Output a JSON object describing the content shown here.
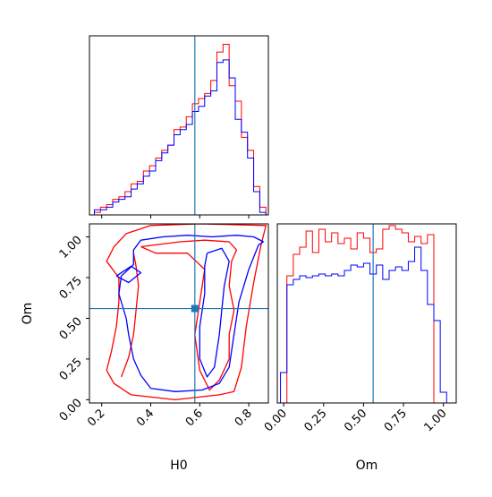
{
  "colors": {
    "red": "#ff0000",
    "blue": "#0000ff",
    "truth": "#1f77b4"
  },
  "chart_data": [
    {
      "panel": "H0 histogram",
      "type": "histogram",
      "xlim": [
        0.15,
        0.88
      ],
      "bin_edges": [
        0.17,
        0.195,
        0.22,
        0.245,
        0.27,
        0.295,
        0.32,
        0.345,
        0.37,
        0.395,
        0.42,
        0.445,
        0.47,
        0.495,
        0.52,
        0.545,
        0.57,
        0.595,
        0.62,
        0.645,
        0.67,
        0.695,
        0.72,
        0.745,
        0.77,
        0.795,
        0.82,
        0.845,
        0.87
      ],
      "series": [
        {
          "color": "red",
          "values": [
            1,
            3,
            4,
            6,
            7,
            9,
            12,
            13,
            17,
            19,
            22,
            25,
            27,
            33,
            34,
            38,
            43,
            45,
            47,
            52,
            63,
            66,
            50,
            44,
            30,
            25,
            11,
            3
          ]
        },
        {
          "color": "blue",
          "values": [
            2,
            2,
            3,
            5,
            6,
            7,
            10,
            12,
            15,
            17,
            21,
            24,
            27,
            31,
            33,
            35,
            40,
            42,
            46,
            48,
            59,
            60,
            53,
            37,
            32,
            22,
            9,
            1
          ]
        }
      ],
      "truth": 0.58,
      "xticks": [
        0.2,
        0.4,
        0.6,
        0.8
      ],
      "show_xticklabels": false,
      "show_yticks": false
    },
    {
      "panel": "Om vs H0 contours",
      "type": "contour",
      "xlabel": "H0",
      "ylabel": "Om",
      "xlim": [
        0.15,
        0.88
      ],
      "ylim": [
        -0.02,
        1.08
      ],
      "xticks": [
        "0.2",
        "0.4",
        "0.6",
        "0.8"
      ],
      "yticks": [
        "0.00",
        "0.25",
        "0.50",
        "0.75",
        "1.00"
      ],
      "truth": {
        "H0": 0.58,
        "Om": 0.56
      },
      "contours": [
        {
          "color": "red",
          "points": [
            [
              0.32,
              0.03
            ],
            [
              0.5,
              0.0
            ],
            [
              0.68,
              0.03
            ],
            [
              0.74,
              0.05
            ],
            [
              0.77,
              0.2
            ],
            [
              0.79,
              0.45
            ],
            [
              0.82,
              0.72
            ],
            [
              0.85,
              0.95
            ],
            [
              0.87,
              1.07
            ],
            [
              0.6,
              1.08
            ],
            [
              0.4,
              1.07
            ],
            [
              0.3,
              1.02
            ],
            [
              0.25,
              0.94
            ],
            [
              0.22,
              0.85
            ],
            [
              0.27,
              0.75
            ],
            [
              0.27,
              0.6
            ],
            [
              0.26,
              0.45
            ],
            [
              0.24,
              0.3
            ],
            [
              0.22,
              0.18
            ],
            [
              0.25,
              0.1
            ],
            [
              0.32,
              0.03
            ]
          ]
        },
        {
          "color": "red",
          "points": [
            [
              0.36,
              0.94
            ],
            [
              0.52,
              0.97
            ],
            [
              0.62,
              0.98
            ],
            [
              0.72,
              0.97
            ],
            [
              0.75,
              0.92
            ],
            [
              0.73,
              0.85
            ],
            [
              0.72,
              0.7
            ],
            [
              0.74,
              0.55
            ],
            [
              0.72,
              0.4
            ],
            [
              0.72,
              0.25
            ],
            [
              0.68,
              0.12
            ],
            [
              0.64,
              0.06
            ],
            [
              0.6,
              0.18
            ],
            [
              0.58,
              0.4
            ],
            [
              0.6,
              0.6
            ],
            [
              0.62,
              0.8
            ],
            [
              0.55,
              0.9
            ],
            [
              0.42,
              0.9
            ],
            [
              0.36,
              0.94
            ]
          ]
        },
        {
          "color": "red",
          "points": [
            [
              0.28,
              0.14
            ],
            [
              0.31,
              0.26
            ],
            [
              0.33,
              0.4
            ],
            [
              0.34,
              0.55
            ],
            [
              0.35,
              0.7
            ],
            [
              0.34,
              0.82
            ],
            [
              0.33,
              0.9
            ]
          ]
        },
        {
          "color": "blue",
          "points": [
            [
              0.4,
              0.07
            ],
            [
              0.5,
              0.05
            ],
            [
              0.61,
              0.06
            ],
            [
              0.68,
              0.1
            ],
            [
              0.72,
              0.2
            ],
            [
              0.74,
              0.4
            ],
            [
              0.76,
              0.6
            ],
            [
              0.8,
              0.8
            ],
            [
              0.84,
              0.95
            ],
            [
              0.86,
              0.97
            ],
            [
              0.82,
              1.0
            ],
            [
              0.75,
              1.01
            ],
            [
              0.65,
              1.0
            ],
            [
              0.55,
              1.01
            ],
            [
              0.45,
              1.0
            ],
            [
              0.36,
              0.98
            ],
            [
              0.33,
              0.92
            ],
            [
              0.33,
              0.83
            ],
            [
              0.28,
              0.76
            ],
            [
              0.27,
              0.65
            ],
            [
              0.3,
              0.5
            ],
            [
              0.31,
              0.4
            ],
            [
              0.33,
              0.25
            ],
            [
              0.36,
              0.15
            ],
            [
              0.4,
              0.07
            ]
          ]
        },
        {
          "color": "blue",
          "points": [
            [
              0.63,
              0.9
            ],
            [
              0.69,
              0.93
            ],
            [
              0.72,
              0.85
            ],
            [
              0.7,
              0.7
            ],
            [
              0.69,
              0.55
            ],
            [
              0.68,
              0.4
            ],
            [
              0.66,
              0.2
            ],
            [
              0.63,
              0.14
            ],
            [
              0.6,
              0.25
            ],
            [
              0.6,
              0.45
            ],
            [
              0.62,
              0.65
            ],
            [
              0.62,
              0.82
            ],
            [
              0.63,
              0.9
            ]
          ]
        },
        {
          "color": "blue",
          "points": [
            [
              0.26,
              0.76
            ],
            [
              0.32,
              0.82
            ],
            [
              0.36,
              0.78
            ],
            [
              0.31,
              0.72
            ],
            [
              0.26,
              0.76
            ]
          ]
        }
      ]
    },
    {
      "panel": "Om histogram",
      "type": "histogram",
      "xlabel": "Om",
      "xlim": [
        -0.04,
        1.08
      ],
      "bin_edges": [
        -0.02,
        0.02,
        0.06,
        0.1,
        0.14,
        0.18,
        0.22,
        0.26,
        0.3,
        0.34,
        0.38,
        0.42,
        0.46,
        0.5,
        0.54,
        0.58,
        0.62,
        0.66,
        0.7,
        0.74,
        0.78,
        0.82,
        0.86,
        0.9,
        0.94,
        0.98,
        1.02
      ],
      "series": [
        {
          "color": "red",
          "values": [
            0,
            0.71,
            0.83,
            0.87,
            0.96,
            0.84,
            0.97,
            0.9,
            0.95,
            0.89,
            0.92,
            0.86,
            0.95,
            0.92,
            0.84,
            0.86,
            0.97,
            0.99,
            0.97,
            0.95,
            0.9,
            0.93,
            0.89,
            0.94,
            0,
            0
          ]
        },
        {
          "color": "blue",
          "values": [
            0.17,
            0.66,
            0.69,
            0.71,
            0.7,
            0.71,
            0.72,
            0.71,
            0.72,
            0.71,
            0.74,
            0.77,
            0.76,
            0.78,
            0.72,
            0.77,
            0.69,
            0.74,
            0.76,
            0.74,
            0.79,
            0.87,
            0.74,
            0.55,
            0.46,
            0.06
          ]
        }
      ],
      "truth": 0.56,
      "xticks": [
        "0.00",
        "0.25",
        "0.50",
        "0.75",
        "1.00"
      ],
      "show_yticks": false
    }
  ]
}
